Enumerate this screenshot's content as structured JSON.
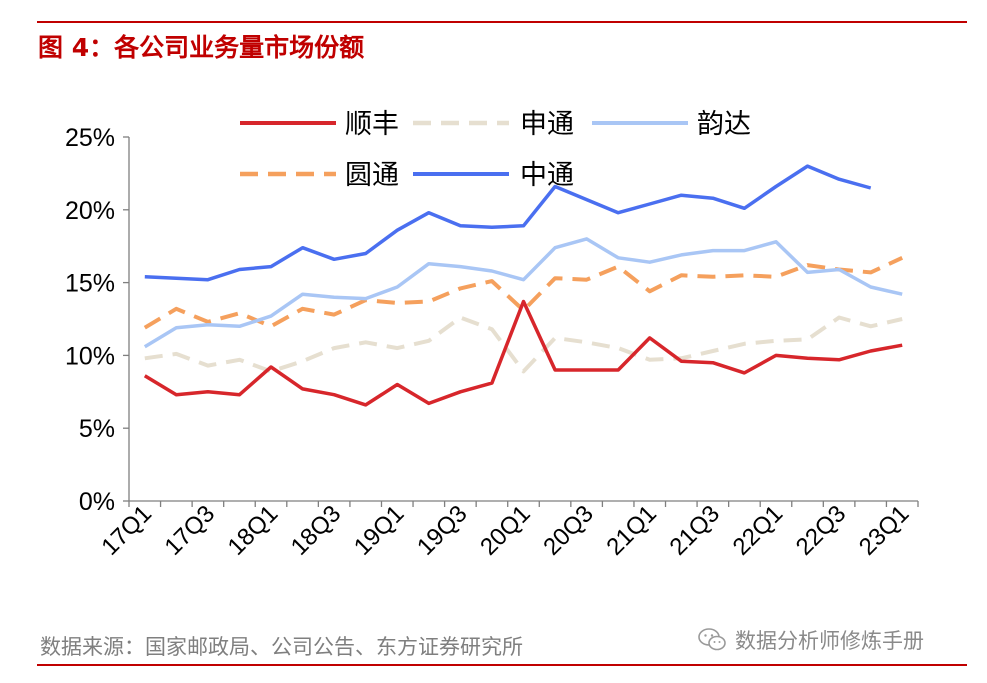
{
  "figure": {
    "title": "图 4：各公司业务量市场份额",
    "source": "数据来源：国家邮政局、公司公告、东方证券研究所",
    "watermark": "数据分析师修炼手册"
  },
  "colors": {
    "accent": "#c00000",
    "axis": "#7f7f7f",
    "text": "#000000",
    "source_text": "#7f7f7f"
  },
  "chart_data": {
    "type": "line",
    "title": "",
    "xlabel": "",
    "ylabel": "",
    "ylim": [
      0,
      25
    ],
    "ytick_values": [
      0,
      5,
      10,
      15,
      20,
      25
    ],
    "yticks": [
      "0%",
      "5%",
      "10%",
      "15%",
      "20%",
      "25%"
    ],
    "grid": false,
    "legend_position": "top",
    "categories": [
      "17Q1",
      "17Q2",
      "17Q3",
      "17Q4",
      "18Q1",
      "18Q2",
      "18Q3",
      "18Q4",
      "19Q1",
      "19Q2",
      "19Q3",
      "19Q4",
      "20Q1",
      "20Q2",
      "20Q3",
      "20Q4",
      "21Q1",
      "21Q2",
      "21Q3",
      "21Q4",
      "22Q1",
      "22Q2",
      "22Q3",
      "22Q4",
      "23Q1"
    ],
    "xtick_labels": [
      "17Q1",
      "17Q3",
      "18Q1",
      "18Q3",
      "19Q1",
      "19Q3",
      "20Q1",
      "20Q3",
      "21Q1",
      "21Q3",
      "22Q1",
      "22Q3",
      "23Q1"
    ],
    "series": [
      {
        "name": "顺丰",
        "color": "#d7262b",
        "style": "solid",
        "values": [
          8.6,
          7.3,
          7.5,
          7.3,
          9.2,
          7.7,
          7.3,
          6.6,
          8.0,
          6.7,
          7.5,
          8.1,
          13.7,
          9.0,
          9.0,
          9.0,
          11.2,
          9.6,
          9.5,
          8.8,
          10.0,
          9.8,
          9.7,
          10.3,
          10.7
        ]
      },
      {
        "name": "申通",
        "color": "#e6dfd0",
        "style": "dashed",
        "values": [
          9.8,
          10.1,
          9.3,
          9.7,
          8.9,
          9.6,
          10.5,
          10.9,
          10.5,
          11.0,
          12.6,
          11.8,
          8.9,
          11.2,
          10.9,
          10.5,
          9.7,
          9.8,
          10.3,
          10.8,
          11.0,
          11.1,
          12.6,
          12.0,
          12.5
        ]
      },
      {
        "name": "韵达",
        "color": "#a9c6f5",
        "style": "solid",
        "values": [
          10.6,
          11.9,
          12.1,
          12.0,
          12.7,
          14.2,
          14.0,
          13.9,
          14.7,
          16.3,
          16.1,
          15.8,
          15.2,
          17.4,
          18.0,
          16.7,
          16.4,
          16.9,
          17.2,
          17.2,
          17.8,
          15.7,
          15.9,
          14.7,
          14.2
        ]
      },
      {
        "name": "圆通",
        "color": "#f5a05d",
        "style": "dashed",
        "values": [
          11.9,
          13.2,
          12.3,
          12.9,
          12.0,
          13.2,
          12.8,
          13.8,
          13.6,
          13.7,
          14.6,
          15.1,
          13.1,
          15.3,
          15.2,
          16.1,
          14.4,
          15.5,
          15.4,
          15.5,
          15.4,
          16.2,
          15.9,
          15.7,
          16.7
        ]
      },
      {
        "name": "中通",
        "color": "#4a6ff0",
        "style": "solid",
        "values": [
          15.4,
          15.3,
          15.2,
          15.9,
          16.1,
          17.4,
          16.6,
          17.0,
          18.6,
          19.8,
          18.9,
          18.8,
          18.9,
          21.6,
          20.7,
          19.8,
          20.4,
          21.0,
          20.8,
          20.1,
          21.6,
          23.0,
          22.1,
          21.5,
          null
        ]
      }
    ]
  }
}
